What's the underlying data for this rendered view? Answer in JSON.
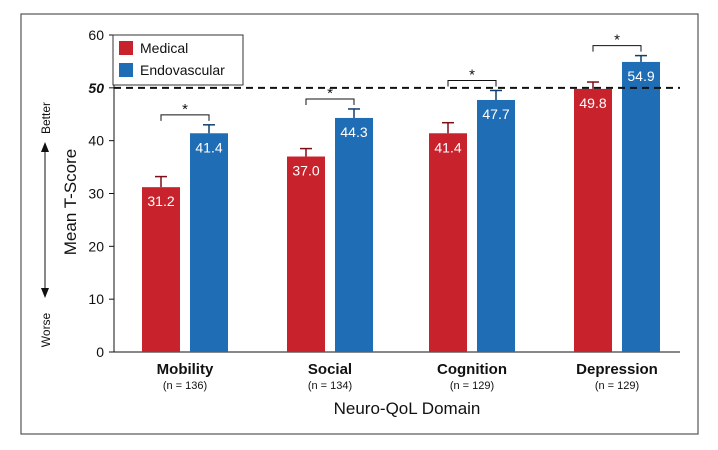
{
  "chart_data": {
    "type": "bar",
    "categories": [
      "Mobility",
      "Social",
      "Cognition",
      "Depression"
    ],
    "category_notes": [
      "(n = 136)",
      "(n = 134)",
      "(n = 129)",
      "(n = 129)"
    ],
    "series": [
      {
        "name": "Medical",
        "color": "#c8232c",
        "values": [
          31.2,
          37.0,
          41.4,
          49.8
        ],
        "errors": [
          2.0,
          1.5,
          2.0,
          1.3
        ]
      },
      {
        "name": "Endovascular",
        "color": "#1f6db5",
        "values": [
          41.4,
          44.3,
          47.7,
          54.9
        ],
        "errors": [
          1.6,
          1.7,
          1.8,
          1.2
        ]
      }
    ],
    "data_labels": [
      [
        "31.2",
        "37.0",
        "41.4",
        "49.8"
      ],
      [
        "41.4",
        "44.3",
        "47.7",
        "54.9"
      ]
    ],
    "significance": [
      "*",
      "*",
      "*",
      "*"
    ],
    "reference_line": {
      "value": 50,
      "label": "50",
      "style": "dashed"
    },
    "xlabel": "Neuro-QoL Domain",
    "ylabel": "Mean T-Score",
    "direction_labels": {
      "top": "Better",
      "bottom": "Worse"
    },
    "ylim": [
      0,
      60
    ],
    "yticks": [
      "0",
      "10",
      "20",
      "30",
      "40",
      "60"
    ],
    "legend_position": "top-left",
    "grid": false
  }
}
